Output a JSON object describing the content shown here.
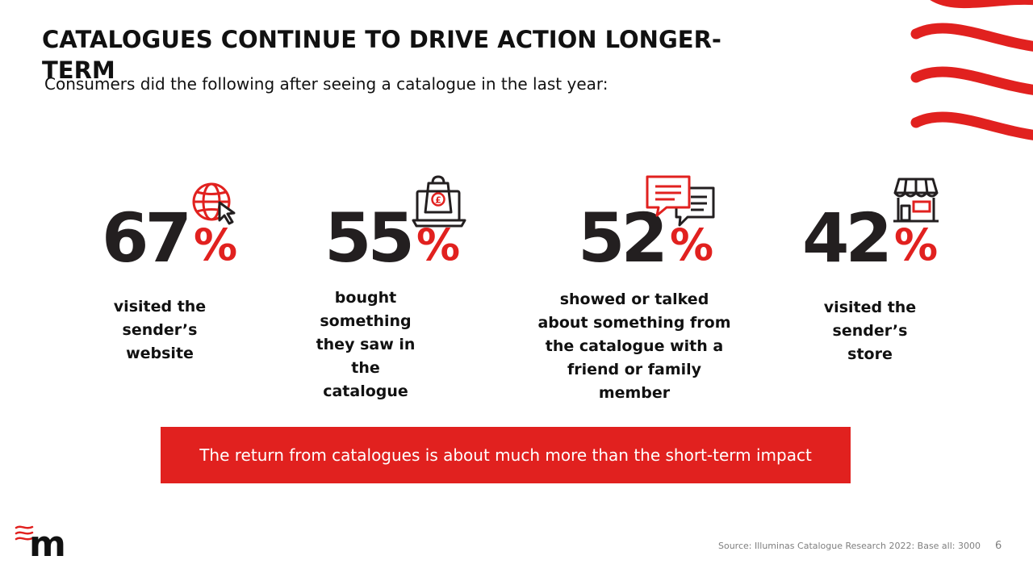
{
  "slide": {
    "title": "CATALOGUES CONTINUE TO DRIVE ACTION LONGER-TERM",
    "subtitle": "Consumers did the following after seeing a catalogue in the last year:",
    "accent_color": "#e1211f",
    "text_color": "#231f20"
  },
  "stats": [
    {
      "value": "67",
      "unit": "%",
      "icon": "globe-cursor-icon",
      "description": "visited the sender’s website"
    },
    {
      "value": "55",
      "unit": "%",
      "icon": "laptop-shopping-bag-icon",
      "description": "bought something they saw in the catalogue"
    },
    {
      "value": "52",
      "unit": "%",
      "icon": "chat-bubbles-icon",
      "description": "showed or talked about something from the catalogue with a friend or family member"
    },
    {
      "value": "42",
      "unit": "%",
      "icon": "storefront-icon",
      "description": "visited the sender’s store"
    }
  ],
  "banner": {
    "text": "The return from catalogues is about much more than the short-term impact"
  },
  "footer": {
    "source": "Source: Illuminas Catalogue Research 2022: Base all: 3000",
    "page_number": "6"
  },
  "logo": {
    "name": "m-logo",
    "letter": "m"
  }
}
